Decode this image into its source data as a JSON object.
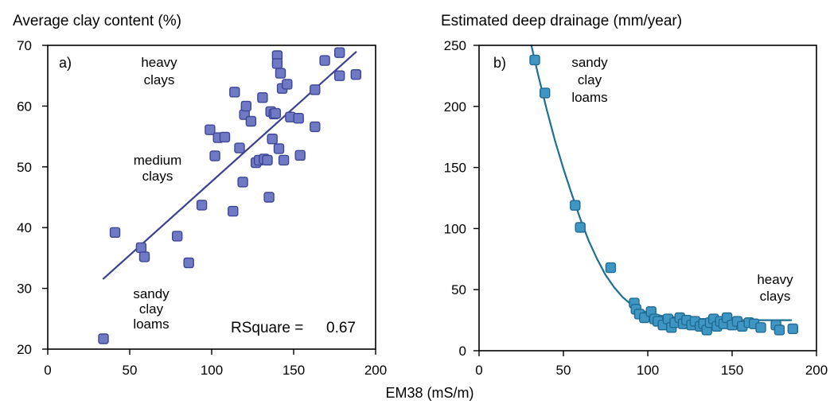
{
  "xlabel": "EM38 (mS/m)",
  "colors": {
    "marker_a": "#6f79c4",
    "marker_a_edge": "#3d4596",
    "fit_a": "#3a4190",
    "marker_b": "#3f96c3",
    "marker_b_edge": "#1e6b94",
    "fit_b": "#1f6f93"
  },
  "chart_data": [
    {
      "type": "scatter",
      "panel_label": "a)",
      "title": "Average clay content (%)",
      "xlabel": "",
      "ylabel": "",
      "xlim": [
        0,
        200
      ],
      "ylim": [
        20,
        70
      ],
      "xticks": [
        0,
        50,
        100,
        150,
        200
      ],
      "yticks": [
        20,
        30,
        40,
        50,
        60,
        70
      ],
      "series": [
        {
          "points": [
            [
              34,
              21.7
            ],
            [
              41,
              39.2
            ],
            [
              57,
              36.7
            ],
            [
              59,
              35.2
            ],
            [
              79,
              38.6
            ],
            [
              86,
              34.2
            ],
            [
              94,
              43.7
            ],
            [
              99,
              56.1
            ],
            [
              102,
              51.8
            ],
            [
              104,
              54.8
            ],
            [
              108,
              54.9
            ],
            [
              113,
              42.7
            ],
            [
              114,
              62.3
            ],
            [
              117,
              53.1
            ],
            [
              119,
              47.5
            ],
            [
              120,
              58.6
            ],
            [
              121,
              60.0
            ],
            [
              124,
              57.5
            ],
            [
              127,
              50.7
            ],
            [
              129,
              51.1
            ],
            [
              131,
              61.4
            ],
            [
              132,
              51.3
            ],
            [
              134,
              51.1
            ],
            [
              135,
              45.0
            ],
            [
              136,
              59.1
            ],
            [
              137,
              54.6
            ],
            [
              138,
              58.7
            ],
            [
              139,
              58.8
            ],
            [
              140,
              68.3
            ],
            [
              140,
              67.0
            ],
            [
              141,
              53.0
            ],
            [
              142,
              65.4
            ],
            [
              143,
              62.9
            ],
            [
              144,
              51.1
            ],
            [
              146,
              63.6
            ],
            [
              148,
              58.2
            ],
            [
              153,
              58.0
            ],
            [
              154,
              51.9
            ],
            [
              163,
              62.7
            ],
            [
              163,
              56.6
            ],
            [
              169,
              67.5
            ],
            [
              178,
              65.0
            ],
            [
              178,
              68.8
            ],
            [
              188,
              65.2
            ]
          ]
        }
      ],
      "fit_line": {
        "x": [
          34,
          188
        ],
        "y": [
          31.6,
          68.9
        ]
      },
      "annotations": {
        "heavy_l1": "heavy",
        "heavy_l2": "clays",
        "medium_l1": "medium",
        "medium_l2": "clays",
        "sandy_l1": "sandy",
        "sandy_l2": "clay",
        "sandy_l3": "loams",
        "rsquare_label": "RSquare =",
        "rsquare_value": "0.67"
      },
      "grid": false
    },
    {
      "type": "scatter",
      "panel_label": "b)",
      "title": "Estimated deep drainage (mm/year)",
      "xlabel": "",
      "ylabel": "",
      "xlim": [
        0,
        200
      ],
      "ylim": [
        0,
        250
      ],
      "xticks": [
        0,
        50,
        100,
        150,
        200
      ],
      "yticks": [
        0,
        50,
        100,
        150,
        200,
        250
      ],
      "series": [
        {
          "points": [
            [
              33,
              238
            ],
            [
              39,
              211
            ],
            [
              57,
              119
            ],
            [
              60,
              101
            ],
            [
              78,
              68
            ],
            [
              92,
              39
            ],
            [
              93,
              34
            ],
            [
              95,
              30
            ],
            [
              98,
              27
            ],
            [
              102,
              32
            ],
            [
              104,
              26
            ],
            [
              106,
              24
            ],
            [
              109,
              21
            ],
            [
              112,
              26
            ],
            [
              114,
              19
            ],
            [
              116,
              23
            ],
            [
              119,
              27
            ],
            [
              121,
              22
            ],
            [
              123,
              25
            ],
            [
              126,
              21
            ],
            [
              128,
              24
            ],
            [
              131,
              20
            ],
            [
              133,
              22
            ],
            [
              135,
              17
            ],
            [
              137,
              23
            ],
            [
              139,
              26
            ],
            [
              141,
              20
            ],
            [
              143,
              24
            ],
            [
              145,
              22
            ],
            [
              147,
              27
            ],
            [
              150,
              21
            ],
            [
              153,
              24
            ],
            [
              156,
              20
            ],
            [
              160,
              23
            ],
            [
              163,
              22
            ],
            [
              167,
              19
            ],
            [
              176,
              21
            ],
            [
              178,
              17
            ],
            [
              186,
              18
            ]
          ]
        }
      ],
      "fit_line": {
        "x": [
          31,
          35,
          40,
          45,
          50,
          55,
          60,
          65,
          70,
          75,
          80,
          85,
          90,
          95,
          100,
          110,
          120,
          130,
          140,
          150,
          160,
          170,
          180,
          185
        ],
        "y": [
          250,
          226,
          198,
          172,
          149,
          128,
          108,
          90,
          75,
          62,
          52,
          44,
          38,
          34,
          31,
          28,
          27,
          26,
          26,
          25,
          25,
          25,
          25,
          25
        ]
      },
      "annotations": {
        "sandy_l1": "sandy",
        "sandy_l2": "clay",
        "sandy_l3": "loams",
        "heavy_l1": "heavy",
        "heavy_l2": "clays"
      },
      "grid": false
    }
  ]
}
